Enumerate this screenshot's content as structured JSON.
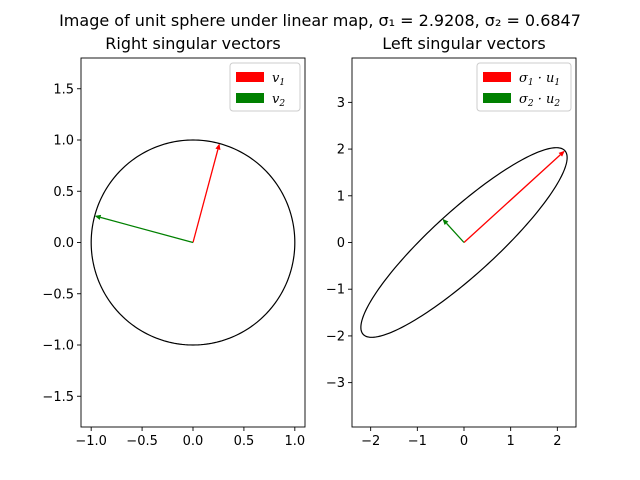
{
  "suptitle": "Image of unit sphere under linear map, σ₁ = 2.9208, σ₂ = 0.6847",
  "chart_data": [
    {
      "type": "line",
      "title": "Right singular vectors",
      "xlim": [
        -1.1,
        1.1
      ],
      "ylim": [
        -1.8,
        1.8
      ],
      "aspect": "equal",
      "x_ticks": [
        -1.0,
        -0.5,
        0.0,
        0.5,
        1.0
      ],
      "x_tick_labels": [
        "−1.0",
        "−0.5",
        "0.0",
        "0.5",
        "1.0"
      ],
      "y_ticks": [
        -1.5,
        -1.0,
        -0.5,
        0.0,
        0.5,
        1.0,
        1.5
      ],
      "y_tick_labels": [
        "−1.5",
        "−1.0",
        "−0.5",
        "0.0",
        "0.5",
        "1.0",
        "1.5"
      ],
      "curve": {
        "kind": "unit_circle",
        "color": "#000000"
      },
      "arrows": [
        {
          "name": "v1",
          "label_base": "v",
          "label_sub": "1",
          "from": [
            0,
            0
          ],
          "to": [
            0.26,
            0.966
          ],
          "color": "#ff0000"
        },
        {
          "name": "v2",
          "label_base": "v",
          "label_sub": "2",
          "from": [
            0,
            0
          ],
          "to": [
            -0.966,
            0.26
          ],
          "color": "#008000"
        }
      ],
      "legend": "upper right",
      "grid": false
    },
    {
      "type": "line",
      "title": "Left singular vectors",
      "xlim": [
        -2.4,
        2.4
      ],
      "ylim": [
        -3.95,
        3.95
      ],
      "aspect": "equal",
      "x_ticks": [
        -2,
        -1,
        0,
        1,
        2
      ],
      "x_tick_labels": [
        "−2",
        "−1",
        "0",
        "1",
        "2"
      ],
      "y_ticks": [
        -3,
        -2,
        -1,
        0,
        1,
        2,
        3
      ],
      "y_tick_labels": [
        "−3",
        "−2",
        "−1",
        "0",
        "1",
        "2",
        "3"
      ],
      "curve": {
        "kind": "ellipse",
        "u1": [
          0.74,
          0.673
        ],
        "u2": [
          -0.673,
          0.74
        ],
        "s1": 2.9208,
        "s2": 0.6847,
        "color": "#000000"
      },
      "arrows": [
        {
          "name": "s1u1",
          "label_base": "σ",
          "label_sub": "1",
          "label_mid": " · u",
          "label_sub2": "1",
          "from": [
            0,
            0
          ],
          "to": [
            2.16,
            1.965
          ],
          "color": "#ff0000"
        },
        {
          "name": "s2u2",
          "label_base": "σ",
          "label_sub": "2",
          "label_mid": " · u",
          "label_sub2": "2",
          "from": [
            0,
            0
          ],
          "to": [
            -0.461,
            0.507
          ],
          "color": "#008000"
        }
      ],
      "legend": "upper right",
      "grid": false
    }
  ]
}
